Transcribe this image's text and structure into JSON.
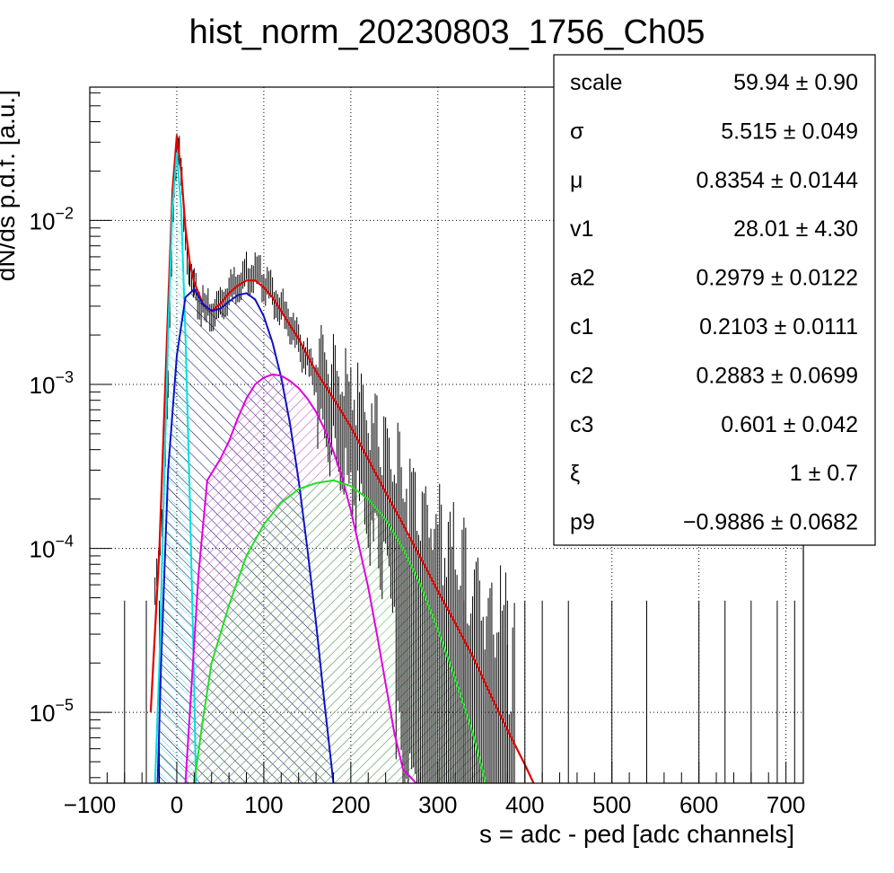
{
  "chart_data": {
    "type": "histogram-with-fit",
    "title": "hist_norm_20230803_1756_Ch05",
    "xlabel": "s = adc - ped [adc channels]",
    "ylabel": "dN/ds p.d.f. [a.u.]",
    "xlim": [
      -100,
      720
    ],
    "ylim": [
      3.7e-06,
      0.065
    ],
    "ylog": true,
    "grid": true,
    "x_ticks": [
      -100,
      0,
      100,
      200,
      300,
      400,
      500,
      600,
      700
    ],
    "x_tick_labels": [
      "−100",
      "0",
      "100",
      "200",
      "300",
      "400",
      "500",
      "600",
      "700"
    ],
    "y_ticks": [
      {
        "value": 1e-05,
        "base": "10",
        "exp": "−5"
      },
      {
        "value": 0.0001,
        "base": "10",
        "exp": "−4"
      },
      {
        "value": 0.001,
        "base": "10",
        "exp": "−3"
      },
      {
        "value": 0.01,
        "base": "10",
        "exp": "−2"
      }
    ],
    "histogram": {
      "color": "#000000",
      "points": [
        [
          -25,
          5e-05
        ],
        [
          -15,
          0.0002
        ],
        [
          -10,
          0.001
        ],
        [
          -6,
          0.006
        ],
        [
          -3,
          0.018
        ],
        [
          0,
          0.028
        ],
        [
          3,
          0.025
        ],
        [
          6,
          0.016
        ],
        [
          10,
          0.008
        ],
        [
          15,
          0.0045
        ],
        [
          20,
          0.0038
        ],
        [
          30,
          0.0029
        ],
        [
          40,
          0.0027
        ],
        [
          50,
          0.0031
        ],
        [
          60,
          0.0036
        ],
        [
          70,
          0.0042
        ],
        [
          80,
          0.0048
        ],
        [
          90,
          0.0047
        ],
        [
          100,
          0.0043
        ],
        [
          110,
          0.0036
        ],
        [
          120,
          0.0029
        ],
        [
          130,
          0.0023
        ],
        [
          140,
          0.0018
        ],
        [
          150,
          0.0014
        ],
        [
          160,
          0.0011
        ],
        [
          170,
          0.00085
        ],
        [
          180,
          0.00068
        ],
        [
          190,
          0.00055
        ],
        [
          200,
          0.00045
        ],
        [
          210,
          0.00036
        ],
        [
          220,
          0.00028
        ],
        [
          230,
          0.00022
        ],
        [
          240,
          0.00017
        ],
        [
          250,
          0.00013
        ],
        [
          260,
          0.0001
        ],
        [
          270,
          8e-05
        ],
        [
          280,
          6.2e-05
        ],
        [
          290,
          5e-05
        ],
        [
          300,
          4e-05
        ],
        [
          310,
          3.3e-05
        ],
        [
          320,
          2.6e-05
        ],
        [
          330,
          2e-05
        ],
        [
          340,
          1.6e-05
        ],
        [
          350,
          1.3e-05
        ],
        [
          360,
          1e-05
        ],
        [
          370,
          8e-06
        ],
        [
          380,
          6.5e-06
        ],
        [
          390,
          5e-06
        ]
      ],
      "sparse_x": [
        -60,
        -35,
        -20,
        330,
        360,
        380,
        400,
        420,
        450,
        500,
        540,
        600,
        630,
        660,
        690,
        710
      ]
    },
    "series": [
      {
        "color": "#e00000",
        "hatch": false,
        "points": [
          [
            -30,
            1e-05
          ],
          [
            -20,
            0.0001
          ],
          [
            -10,
            0.003
          ],
          [
            -5,
            0.015
          ],
          [
            0,
            0.033
          ],
          [
            5,
            0.02
          ],
          [
            10,
            0.009
          ],
          [
            15,
            0.0055
          ],
          [
            20,
            0.0042
          ],
          [
            30,
            0.0031
          ],
          [
            40,
            0.0028
          ],
          [
            50,
            0.0031
          ],
          [
            60,
            0.0036
          ],
          [
            70,
            0.004
          ],
          [
            80,
            0.0043
          ],
          [
            90,
            0.0043
          ],
          [
            100,
            0.0039
          ],
          [
            110,
            0.0034
          ],
          [
            120,
            0.0028
          ],
          [
            130,
            0.0023
          ],
          [
            140,
            0.0019
          ],
          [
            150,
            0.0015
          ],
          [
            160,
            0.0012
          ],
          [
            180,
            0.00082
          ],
          [
            200,
            0.00055
          ],
          [
            220,
            0.00035
          ],
          [
            240,
            0.00022
          ],
          [
            260,
            0.00014
          ],
          [
            280,
            8.8e-05
          ],
          [
            300,
            5.5e-05
          ],
          [
            320,
            3.5e-05
          ],
          [
            340,
            2.2e-05
          ],
          [
            360,
            1.3e-05
          ],
          [
            380,
            7.8e-06
          ],
          [
            400,
            4.8e-06
          ],
          [
            410,
            3.7e-06
          ]
        ]
      },
      {
        "color": "#00e0e0",
        "hatch": "#40e0e0",
        "points": [
          [
            -25,
            3.7e-06
          ],
          [
            -20,
            2e-05
          ],
          [
            -15,
            0.0002
          ],
          [
            -10,
            0.002
          ],
          [
            -5,
            0.012
          ],
          [
            0,
            0.026
          ],
          [
            5,
            0.012
          ],
          [
            10,
            0.002
          ],
          [
            15,
            0.0002
          ],
          [
            20,
            1.5e-05
          ],
          [
            22,
            3.7e-06
          ]
        ]
      },
      {
        "color": "#1010c8",
        "hatch": "#000060",
        "points": [
          [
            -22,
            3.7e-06
          ],
          [
            -18,
            2e-05
          ],
          [
            -10,
            0.0003
          ],
          [
            0,
            0.0015
          ],
          [
            10,
            0.0034
          ],
          [
            20,
            0.0038
          ],
          [
            30,
            0.0031
          ],
          [
            40,
            0.0028
          ],
          [
            50,
            0.0029
          ],
          [
            60,
            0.0032
          ],
          [
            70,
            0.0035
          ],
          [
            80,
            0.0036
          ],
          [
            90,
            0.0033
          ],
          [
            100,
            0.0026
          ],
          [
            110,
            0.0018
          ],
          [
            120,
            0.0011
          ],
          [
            130,
            0.00058
          ],
          [
            140,
            0.00026
          ],
          [
            150,
            0.0001
          ],
          [
            160,
            3.5e-05
          ],
          [
            170,
            1.1e-05
          ],
          [
            180,
            3.7e-06
          ]
        ]
      },
      {
        "color": "#e000e0",
        "hatch": "#c040c0",
        "points": [
          [
            10,
            3.7e-06
          ],
          [
            15,
            1e-05
          ],
          [
            25,
            7e-05
          ],
          [
            35,
            0.00026
          ],
          [
            50,
            0.00035
          ],
          [
            60,
            0.00045
          ],
          [
            70,
            0.00062
          ],
          [
            80,
            0.00082
          ],
          [
            90,
            0.001
          ],
          [
            100,
            0.0011
          ],
          [
            110,
            0.00115
          ],
          [
            120,
            0.00113
          ],
          [
            130,
            0.00105
          ],
          [
            140,
            0.00095
          ],
          [
            150,
            0.00082
          ],
          [
            160,
            0.00068
          ],
          [
            170,
            0.00053
          ],
          [
            180,
            0.00039
          ],
          [
            190,
            0.00027
          ],
          [
            200,
            0.00017
          ],
          [
            210,
            0.0001
          ],
          [
            220,
            5.8e-05
          ],
          [
            230,
            3e-05
          ],
          [
            240,
            1.5e-05
          ],
          [
            250,
            7.5e-06
          ],
          [
            260,
            4.5e-06
          ],
          [
            275,
            3.7e-06
          ]
        ]
      },
      {
        "color": "#20e020",
        "hatch": "#40c040",
        "points": [
          [
            20,
            3.7e-06
          ],
          [
            30,
            9e-06
          ],
          [
            40,
            2e-05
          ],
          [
            60,
            4.5e-05
          ],
          [
            80,
            9e-05
          ],
          [
            100,
            0.00014
          ],
          [
            120,
            0.00019
          ],
          [
            140,
            0.00023
          ],
          [
            160,
            0.00025
          ],
          [
            180,
            0.00026
          ],
          [
            200,
            0.00024
          ],
          [
            220,
            0.0002
          ],
          [
            240,
            0.00015
          ],
          [
            260,
            0.0001
          ],
          [
            280,
            6e-05
          ],
          [
            300,
            3.2e-05
          ],
          [
            320,
            1.6e-05
          ],
          [
            340,
            7.5e-06
          ],
          [
            355,
            3.7e-06
          ]
        ]
      }
    ]
  },
  "stats": [
    {
      "name": "scale",
      "value": "59.94",
      "error": "0.90"
    },
    {
      "name": "σ",
      "value": "5.515",
      "error": "0.049"
    },
    {
      "name": "μ",
      "value": "0.8354",
      "error": "0.0144"
    },
    {
      "name": "v1",
      "value": "28.01",
      "error": "4.30"
    },
    {
      "name": "a2",
      "value": "0.2979",
      "error": "0.0122"
    },
    {
      "name": "c1",
      "value": "0.2103",
      "error": "0.0111"
    },
    {
      "name": "c2",
      "value": "0.2883",
      "error": "0.0699"
    },
    {
      "name": "c3",
      "value": "0.601",
      "error": "0.042"
    },
    {
      "name": "ξ",
      "value": "1",
      "error": "0.7"
    },
    {
      "name": "p9",
      "value": "−0.9886",
      "error": "0.0682"
    }
  ]
}
